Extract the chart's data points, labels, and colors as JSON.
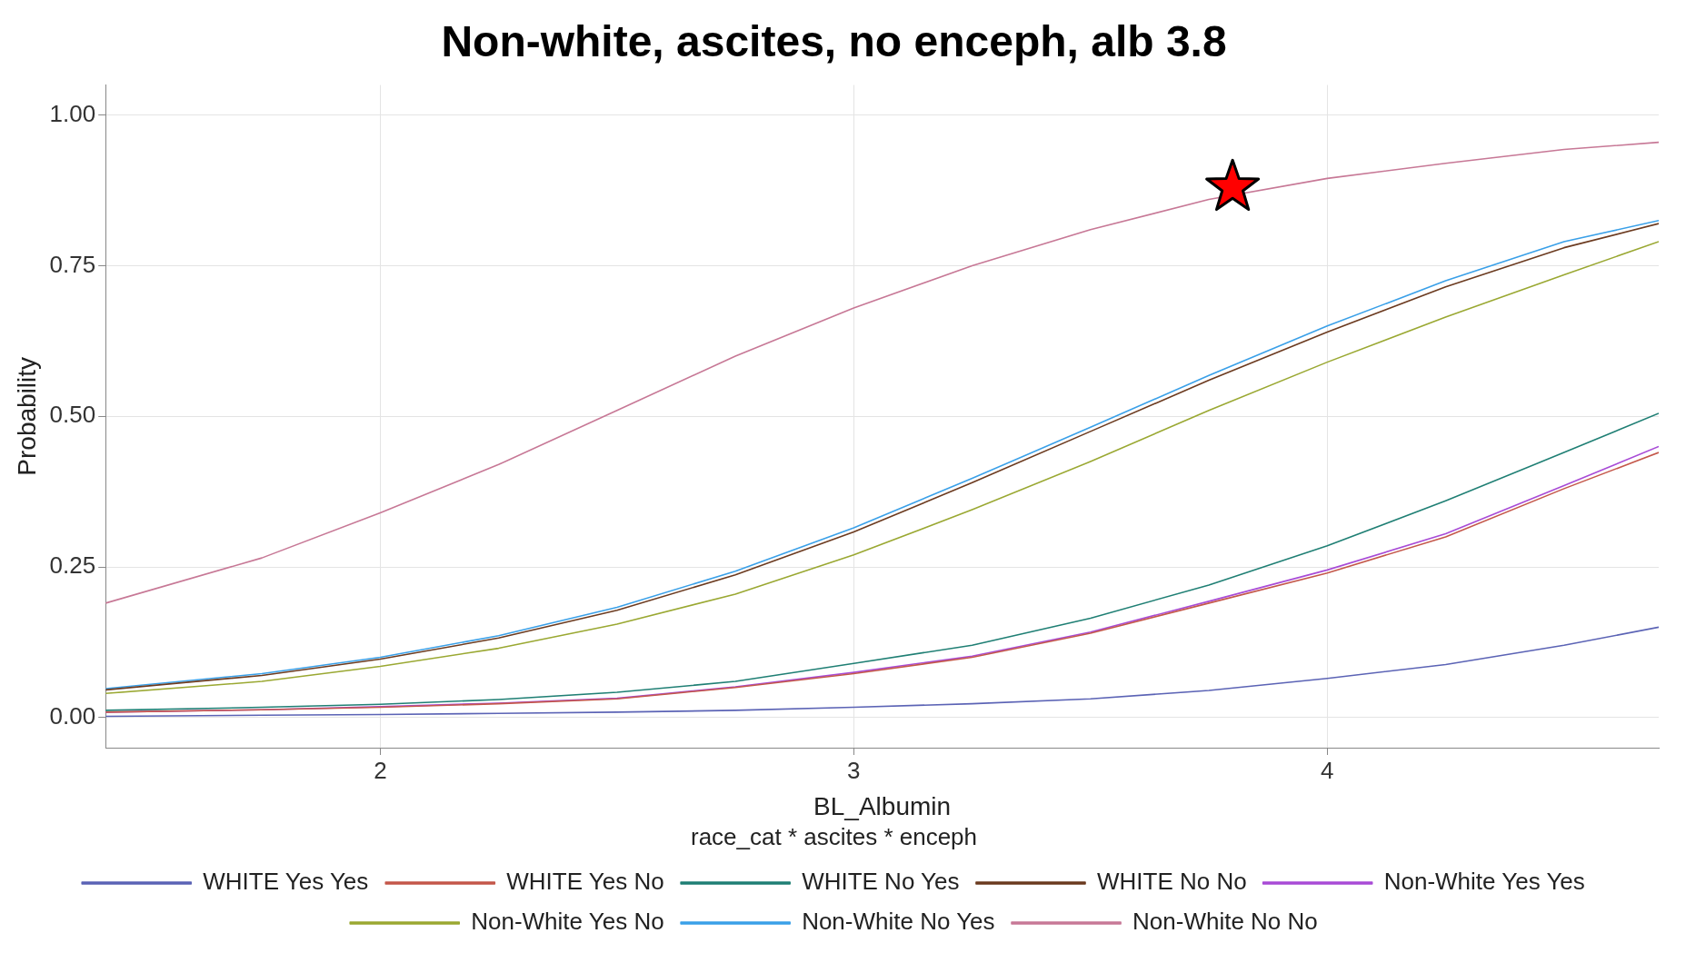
{
  "chart_data": {
    "type": "line",
    "title": "Non-white, ascites, no enceph, alb 3.8",
    "xlabel": "BL_Albumin",
    "ylabel": "Probability",
    "legend_title": "race_cat * ascites * enceph",
    "legend": "bottom",
    "grid": true,
    "marker": "none",
    "line_style": "solid",
    "x": [
      1.42,
      1.75,
      2,
      2.25,
      2.5,
      2.75,
      3,
      3.25,
      3.5,
      3.75,
      4,
      4.25,
      4.5,
      4.7
    ],
    "xlim": [
      1.42,
      4.7
    ],
    "xticks": [
      2,
      3,
      4
    ],
    "ylim": [
      -0.05,
      1.05
    ],
    "yticks": [
      {
        "value": 0,
        "label": "0.00"
      },
      {
        "value": 0.25,
        "label": "0.25"
      },
      {
        "value": 0.5,
        "label": "0.50"
      },
      {
        "value": 0.75,
        "label": "0.75"
      },
      {
        "value": 1,
        "label": "1.00"
      }
    ],
    "series": [
      {
        "name": "WHITE Yes Yes",
        "color": "#5b63b5",
        "values": [
          0.002,
          0.004,
          0.005,
          0.007,
          0.009,
          0.012,
          0.017,
          0.023,
          0.031,
          0.045,
          0.065,
          0.088,
          0.12,
          0.15
        ]
      },
      {
        "name": "WHITE Yes No",
        "color": "#c4574a",
        "values": [
          0.009,
          0.013,
          0.017,
          0.023,
          0.031,
          0.05,
          0.073,
          0.1,
          0.14,
          0.19,
          0.24,
          0.3,
          0.38,
          0.44
        ]
      },
      {
        "name": "WHITE No Yes",
        "color": "#1f7f74",
        "values": [
          0.012,
          0.017,
          0.022,
          0.03,
          0.042,
          0.06,
          0.09,
          0.12,
          0.165,
          0.22,
          0.285,
          0.36,
          0.44,
          0.505
        ]
      },
      {
        "name": "WHITE No No",
        "color": "#6b3a1f",
        "values": [
          0.046,
          0.07,
          0.097,
          0.132,
          0.178,
          0.237,
          0.308,
          0.39,
          0.475,
          0.56,
          0.64,
          0.715,
          0.78,
          0.82
        ]
      },
      {
        "name": "Non-White Yes Yes",
        "color": "#a84bd6",
        "values": [
          0.009,
          0.013,
          0.018,
          0.024,
          0.032,
          0.051,
          0.075,
          0.102,
          0.142,
          0.193,
          0.245,
          0.305,
          0.385,
          0.45
        ]
      },
      {
        "name": "Non-White Yes No",
        "color": "#9aa832",
        "values": [
          0.04,
          0.06,
          0.085,
          0.115,
          0.155,
          0.205,
          0.27,
          0.345,
          0.425,
          0.51,
          0.59,
          0.665,
          0.735,
          0.79
        ]
      },
      {
        "name": "Non-White No Yes",
        "color": "#3aa0e8",
        "values": [
          0.048,
          0.073,
          0.1,
          0.136,
          0.183,
          0.243,
          0.315,
          0.397,
          0.482,
          0.568,
          0.65,
          0.725,
          0.79,
          0.825
        ]
      },
      {
        "name": "Non-White No No",
        "color": "#c77896",
        "values": [
          0.19,
          0.265,
          0.34,
          0.42,
          0.51,
          0.6,
          0.68,
          0.75,
          0.81,
          0.86,
          0.895,
          0.92,
          0.943,
          0.955
        ]
      },
      {
        "type": "scatter",
        "marker": "star",
        "color": "#ff0000",
        "x": [
          3.8
        ],
        "values": [
          0.88
        ]
      }
    ]
  }
}
